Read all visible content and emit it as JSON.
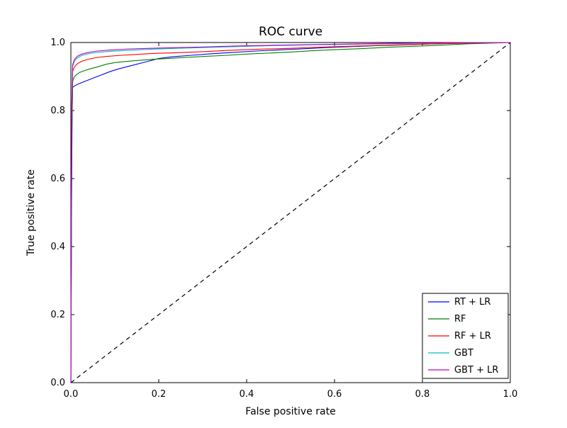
{
  "chart_data": {
    "type": "line",
    "title": "ROC curve",
    "xlabel": "False positive rate",
    "ylabel": "True positive rate",
    "xlim": [
      0,
      1
    ],
    "ylim": [
      0,
      1
    ],
    "xticks": [
      "0.0",
      "0.2",
      "0.4",
      "0.6",
      "0.8",
      "1.0"
    ],
    "yticks": [
      "0.0",
      "0.2",
      "0.4",
      "0.6",
      "0.8",
      "1.0"
    ],
    "grid": false,
    "legend_position": "lower right",
    "axes_color": "#000000",
    "background_color": "#ffffff",
    "diagonal_reference": {
      "name": "chance-line",
      "style": "dashed",
      "color": "#000000",
      "points": [
        [
          0,
          0
        ],
        [
          1,
          1
        ]
      ]
    },
    "series": [
      {
        "name": "RT + LR",
        "color": "#0000ff",
        "points": [
          [
            0,
            0
          ],
          [
            0.002,
            0.62
          ],
          [
            0.003,
            0.8
          ],
          [
            0.004,
            0.868
          ],
          [
            0.008,
            0.872
          ],
          [
            0.015,
            0.877
          ],
          [
            0.03,
            0.885
          ],
          [
            0.05,
            0.895
          ],
          [
            0.07,
            0.905
          ],
          [
            0.09,
            0.915
          ],
          [
            0.11,
            0.923
          ],
          [
            0.14,
            0.933
          ],
          [
            0.17,
            0.943
          ],
          [
            0.2,
            0.953
          ],
          [
            0.23,
            0.958
          ],
          [
            0.27,
            0.962
          ],
          [
            0.32,
            0.967
          ],
          [
            0.37,
            0.971
          ],
          [
            0.42,
            0.975
          ],
          [
            0.47,
            0.978
          ],
          [
            0.52,
            0.981
          ],
          [
            0.58,
            0.985
          ],
          [
            0.64,
            0.988
          ],
          [
            0.7,
            0.991
          ],
          [
            0.76,
            0.993
          ],
          [
            0.82,
            0.996
          ],
          [
            0.88,
            0.998
          ],
          [
            0.92,
            1.0
          ],
          [
            1,
            1
          ]
        ]
      },
      {
        "name": "RF",
        "color": "#008000",
        "points": [
          [
            0,
            0
          ],
          [
            0.002,
            0.7
          ],
          [
            0.004,
            0.885
          ],
          [
            0.007,
            0.897
          ],
          [
            0.012,
            0.905
          ],
          [
            0.02,
            0.912
          ],
          [
            0.03,
            0.917
          ],
          [
            0.045,
            0.923
          ],
          [
            0.06,
            0.928
          ],
          [
            0.08,
            0.936
          ],
          [
            0.1,
            0.941
          ],
          [
            0.13,
            0.945
          ],
          [
            0.16,
            0.948
          ],
          [
            0.19,
            0.951
          ],
          [
            0.22,
            0.953
          ],
          [
            0.26,
            0.956
          ],
          [
            0.3,
            0.959
          ],
          [
            0.35,
            0.962
          ],
          [
            0.4,
            0.966
          ],
          [
            0.45,
            0.969
          ],
          [
            0.5,
            0.972
          ],
          [
            0.55,
            0.976
          ],
          [
            0.6,
            0.979
          ],
          [
            0.66,
            0.982
          ],
          [
            0.72,
            0.986
          ],
          [
            0.78,
            0.989
          ],
          [
            0.84,
            0.992
          ],
          [
            0.9,
            0.996
          ],
          [
            0.95,
            0.998
          ],
          [
            1,
            1
          ]
        ]
      },
      {
        "name": "RF + LR",
        "color": "#ff0000",
        "points": [
          [
            0,
            0
          ],
          [
            0.002,
            0.76
          ],
          [
            0.004,
            0.915
          ],
          [
            0.008,
            0.928
          ],
          [
            0.015,
            0.938
          ],
          [
            0.025,
            0.945
          ],
          [
            0.04,
            0.951
          ],
          [
            0.06,
            0.956
          ],
          [
            0.08,
            0.959
          ],
          [
            0.11,
            0.962
          ],
          [
            0.15,
            0.965
          ],
          [
            0.19,
            0.968
          ],
          [
            0.24,
            0.97
          ],
          [
            0.3,
            0.973
          ],
          [
            0.36,
            0.977
          ],
          [
            0.42,
            0.98
          ],
          [
            0.5,
            0.983
          ],
          [
            0.58,
            0.987
          ],
          [
            0.66,
            0.99
          ],
          [
            0.74,
            0.993
          ],
          [
            0.82,
            0.996
          ],
          [
            0.9,
            0.998
          ],
          [
            1,
            1
          ]
        ]
      },
      {
        "name": "GBT",
        "color": "#00bfbf",
        "points": [
          [
            0,
            0
          ],
          [
            0.002,
            0.8
          ],
          [
            0.004,
            0.93
          ],
          [
            0.008,
            0.945
          ],
          [
            0.015,
            0.955
          ],
          [
            0.025,
            0.962
          ],
          [
            0.04,
            0.967
          ],
          [
            0.06,
            0.971
          ],
          [
            0.09,
            0.974
          ],
          [
            0.13,
            0.977
          ],
          [
            0.18,
            0.98
          ],
          [
            0.24,
            0.983
          ],
          [
            0.3,
            0.985
          ],
          [
            0.38,
            0.988
          ],
          [
            0.46,
            0.991
          ],
          [
            0.55,
            0.993
          ],
          [
            0.65,
            0.995
          ],
          [
            0.75,
            0.997
          ],
          [
            0.85,
            0.999
          ],
          [
            1,
            1
          ]
        ]
      },
      {
        "name": "GBT + LR",
        "color": "#bf00bf",
        "points": [
          [
            0,
            0
          ],
          [
            0.002,
            0.82
          ],
          [
            0.004,
            0.935
          ],
          [
            0.008,
            0.95
          ],
          [
            0.015,
            0.96
          ],
          [
            0.025,
            0.966
          ],
          [
            0.04,
            0.971
          ],
          [
            0.06,
            0.975
          ],
          [
            0.09,
            0.978
          ],
          [
            0.13,
            0.981
          ],
          [
            0.18,
            0.983
          ],
          [
            0.24,
            0.985
          ],
          [
            0.3,
            0.987
          ],
          [
            0.38,
            0.99
          ],
          [
            0.46,
            0.992
          ],
          [
            0.55,
            0.994
          ],
          [
            0.65,
            0.996
          ],
          [
            0.75,
            0.998
          ],
          [
            0.85,
            0.999
          ],
          [
            1,
            1
          ]
        ]
      }
    ]
  }
}
